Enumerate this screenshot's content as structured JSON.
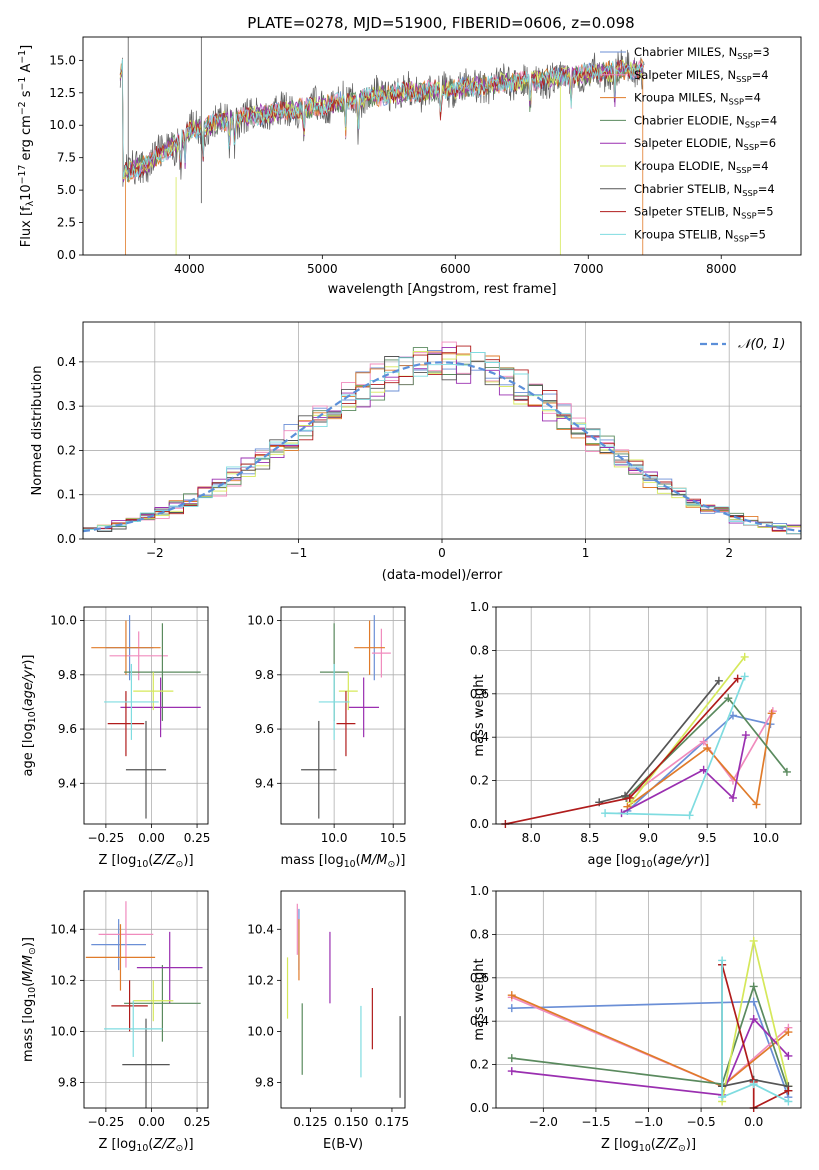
{
  "figure": {
    "title": "PLATE=0278, MJD=51900, FIBERID=0606, z=0.098"
  },
  "colors": {
    "chabrier_miles": "#6b8fd6",
    "salpeter_miles": "#f08bbd",
    "kroupa_miles": "#e07b2a",
    "chabrier_elodie": "#5a8a5e",
    "salpeter_elodie": "#9a2fb0",
    "kroupa_elodie": "#d5e85a",
    "chabrier_stelib": "#555555",
    "salpeter_stelib": "#b01c1c",
    "kroupa_stelib": "#7fdce0"
  },
  "chart_data": [
    {
      "id": "spectrum",
      "type": "line",
      "xlabel": "wavelength [Angstrom, rest frame]",
      "ylabel": "Flux [f_λ 10^-17 erg cm^-2 s^-1 A^-1]",
      "xlim": [
        3200,
        8600
      ],
      "ylim": [
        0,
        16.8
      ],
      "xticks": [
        4000,
        5000,
        6000,
        7000,
        8000
      ],
      "yticks": [
        0.0,
        2.5,
        5.0,
        7.5,
        10.0,
        12.5,
        15.0
      ],
      "grid": false,
      "legend_position": "top-right",
      "legend": [
        {
          "label": "Chabrier MILES, N_SSP=3",
          "base": "Chabrier MILES, N",
          "sub": "SSP",
          "value": "=3",
          "color_key": "chabrier_miles"
        },
        {
          "label": "Salpeter MILES, N_SSP=4",
          "base": "Salpeter MILES, N",
          "sub": "SSP",
          "value": "=4",
          "color_key": "salpeter_miles"
        },
        {
          "label": "Kroupa MILES, N_SSP=4",
          "base": "Kroupa MILES, N",
          "sub": "SSP",
          "value": "=4",
          "color_key": "kroupa_miles"
        },
        {
          "label": "Chabrier ELODIE, N_SSP=4",
          "base": "Chabrier ELODIE, N",
          "sub": "SSP",
          "value": "=4",
          "color_key": "chabrier_elodie"
        },
        {
          "label": "Salpeter ELODIE, N_SSP=6",
          "base": "Salpeter ELODIE, N",
          "sub": "SSP",
          "value": "=6",
          "color_key": "salpeter_elodie"
        },
        {
          "label": "Kroupa ELODIE, N_SSP=4",
          "base": "Kroupa ELODIE, N",
          "sub": "SSP",
          "value": "=4",
          "color_key": "kroupa_elodie"
        },
        {
          "label": "Chabrier STELIB, N_SSP=4",
          "base": "Chabrier STELIB, N",
          "sub": "SSP",
          "value": "=4",
          "color_key": "chabrier_stelib"
        },
        {
          "label": "Salpeter STELIB, N_SSP=5",
          "base": "Salpeter STELIB, N",
          "sub": "SSP",
          "value": "=5",
          "color_key": "salpeter_stelib"
        },
        {
          "label": "Kroupa STELIB, N_SSP=5",
          "base": "Kroupa STELIB, N",
          "sub": "SSP",
          "value": "=5",
          "color_key": "kroupa_stelib"
        }
      ],
      "continuum": {
        "x": [
          3500,
          3700,
          3900,
          4000,
          4300,
          4600,
          5000,
          5300,
          5600,
          6000,
          6300,
          6600,
          7000,
          7300,
          7400
        ],
        "y": [
          6.2,
          7.2,
          8.6,
          9.6,
          10.4,
          10.9,
          11.5,
          12.1,
          12.5,
          12.8,
          13.2,
          13.5,
          14.0,
          14.3,
          14.3
        ]
      }
    },
    {
      "id": "residuals",
      "type": "histogram",
      "xlabel": "(data-model)/error",
      "ylabel": "Normed distribution",
      "xlim": [
        -2.5,
        2.5
      ],
      "ylim": [
        0,
        0.49
      ],
      "xticks": [
        -2,
        -1,
        0,
        1,
        2
      ],
      "yticks": [
        0.0,
        0.1,
        0.2,
        0.3,
        0.4
      ],
      "grid": true,
      "legend_position": "top-right",
      "reference": {
        "label": "𝒩(0, 1)",
        "color": "#5b8fd9",
        "mu": 0,
        "sigma": 1
      },
      "bin_width": 0.1
    },
    {
      "id": "age_vs_Z",
      "type": "errorbar",
      "xlabel": "Z [log10(Z/Z⊙)]",
      "ylabel": "age [log10(age/yr)]",
      "xlim": [
        -0.37,
        0.31
      ],
      "ylim": [
        9.25,
        10.05
      ],
      "xticks": [
        -0.25,
        0.0,
        0.25
      ],
      "xticklabels": [
        "−0.25",
        "0.00",
        "0.25"
      ],
      "yticks": [
        9.4,
        9.6,
        9.8,
        10.0
      ],
      "grid": true,
      "points": [
        {
          "color_key": "chabrier_miles",
          "x": -0.12,
          "xerr": 0.13,
          "y": 9.9,
          "yerr": 0.12
        },
        {
          "color_key": "salpeter_miles",
          "x": -0.07,
          "xerr": 0.16,
          "y": 9.87,
          "yerr": 0.09
        },
        {
          "color_key": "kroupa_miles",
          "x": -0.14,
          "xerr": 0.19,
          "y": 9.9,
          "yerr": 0.1
        },
        {
          "color_key": "chabrier_elodie",
          "x": 0.06,
          "xerr": 0.21,
          "y": 9.81,
          "yerr": 0.18
        },
        {
          "color_key": "salpeter_elodie",
          "x": 0.05,
          "xerr": 0.22,
          "y": 9.68,
          "yerr": 0.11
        },
        {
          "color_key": "kroupa_elodie",
          "x": 0.01,
          "xerr": 0.11,
          "y": 9.74,
          "yerr": 0.07
        },
        {
          "color_key": "chabrier_stelib",
          "x": -0.03,
          "xerr": 0.11,
          "y": 9.45,
          "yerr": 0.18
        },
        {
          "color_key": "salpeter_stelib",
          "x": -0.14,
          "xerr": 0.1,
          "y": 9.62,
          "yerr": 0.12
        },
        {
          "color_key": "kroupa_stelib",
          "x": -0.11,
          "xerr": 0.15,
          "y": 9.7,
          "yerr": 0.14
        }
      ]
    },
    {
      "id": "age_vs_mass",
      "type": "errorbar",
      "xlabel": "mass [log10(M/M⊙)]",
      "ylabel": "",
      "xlim": [
        9.55,
        10.6
      ],
      "ylim": [
        9.25,
        10.05
      ],
      "xticks": [
        10.0,
        10.5
      ],
      "xticklabels": [
        "10.0",
        "10.5"
      ],
      "yticks": [
        9.4,
        9.6,
        9.8,
        10.0
      ],
      "grid": true,
      "points": [
        {
          "color_key": "chabrier_miles",
          "x": 10.34,
          "xerr": 0.0,
          "y": 9.9,
          "yerr": 0.12
        },
        {
          "color_key": "salpeter_miles",
          "x": 10.4,
          "xerr": 0.08,
          "y": 9.88,
          "yerr": 0.09
        },
        {
          "color_key": "kroupa_miles",
          "x": 10.3,
          "xerr": 0.13,
          "y": 9.9,
          "yerr": 0.1
        },
        {
          "color_key": "chabrier_elodie",
          "x": 10.0,
          "xerr": 0.12,
          "y": 9.81,
          "yerr": 0.18
        },
        {
          "color_key": "salpeter_elodie",
          "x": 10.25,
          "xerr": 0.13,
          "y": 9.68,
          "yerr": 0.11
        },
        {
          "color_key": "kroupa_elodie",
          "x": 10.12,
          "xerr": 0.08,
          "y": 9.74,
          "yerr": 0.07
        },
        {
          "color_key": "chabrier_stelib",
          "x": 9.87,
          "xerr": 0.15,
          "y": 9.45,
          "yerr": 0.18
        },
        {
          "color_key": "salpeter_stelib",
          "x": 10.1,
          "xerr": 0.08,
          "y": 9.62,
          "yerr": 0.12
        },
        {
          "color_key": "kroupa_stelib",
          "x": 10.0,
          "xerr": 0.13,
          "y": 9.7,
          "yerr": 0.14
        }
      ]
    },
    {
      "id": "weight_vs_age",
      "type": "line",
      "xlabel": "age [log10(age/yr)]",
      "ylabel": "mass weight",
      "xlim": [
        7.7,
        10.3
      ],
      "ylim": [
        0,
        1.0
      ],
      "xticks": [
        8.0,
        8.5,
        9.0,
        9.5,
        10.0
      ],
      "xticklabels": [
        "8.0",
        "8.5",
        "9.0",
        "9.5",
        "10.0"
      ],
      "yticks": [
        0.0,
        0.2,
        0.4,
        0.6,
        0.8,
        1.0
      ],
      "grid": true,
      "series": [
        {
          "color_key": "chabrier_miles",
          "x": [
            8.82,
            9.72,
            10.04
          ],
          "y": [
            0.06,
            0.5,
            0.46
          ]
        },
        {
          "color_key": "salpeter_miles",
          "x": [
            8.82,
            9.47,
            9.72,
            10.06
          ],
          "y": [
            0.12,
            0.38,
            0.2,
            0.52
          ]
        },
        {
          "color_key": "kroupa_miles",
          "x": [
            8.82,
            9.5,
            9.92,
            10.05
          ],
          "y": [
            0.08,
            0.35,
            0.09,
            0.51
          ]
        },
        {
          "color_key": "chabrier_elodie",
          "x": [
            8.81,
            9.68,
            10.18
          ],
          "y": [
            0.12,
            0.58,
            0.24
          ]
        },
        {
          "color_key": "salpeter_elodie",
          "x": [
            8.77,
            9.47,
            9.72,
            9.83
          ],
          "y": [
            0.05,
            0.25,
            0.12,
            0.41
          ]
        },
        {
          "color_key": "kroupa_elodie",
          "x": [
            8.85,
            9.82
          ],
          "y": [
            0.1,
            0.77
          ]
        },
        {
          "color_key": "chabrier_stelib",
          "x": [
            8.58,
            8.8,
            9.6
          ],
          "y": [
            0.1,
            0.13,
            0.66
          ]
        },
        {
          "color_key": "salpeter_stelib",
          "x": [
            7.78,
            8.84,
            9.76
          ],
          "y": [
            0.0,
            0.12,
            0.67
          ]
        },
        {
          "color_key": "kroupa_stelib",
          "x": [
            8.63,
            9.35,
            9.82
          ],
          "y": [
            0.05,
            0.04,
            0.68
          ]
        }
      ]
    },
    {
      "id": "mass_vs_Z",
      "type": "errorbar",
      "xlabel": "Z [log10(Z/Z⊙)]",
      "ylabel": "mass [log10(M/M⊙)]",
      "xlim": [
        -0.37,
        0.31
      ],
      "ylim": [
        9.7,
        10.55
      ],
      "xticks": [
        -0.25,
        0.0,
        0.25
      ],
      "xticklabels": [
        "−0.25",
        "0.00",
        "0.25"
      ],
      "yticks": [
        9.8,
        10.0,
        10.2,
        10.4
      ],
      "grid": true,
      "points": [
        {
          "color_key": "chabrier_miles",
          "x": -0.18,
          "xerr": 0.15,
          "y": 10.34,
          "yerr": 0.1
        },
        {
          "color_key": "salpeter_miles",
          "x": -0.14,
          "xerr": 0.15,
          "y": 10.38,
          "yerr": 0.13
        },
        {
          "color_key": "kroupa_miles",
          "x": -0.17,
          "xerr": 0.19,
          "y": 10.29,
          "yerr": 0.13
        },
        {
          "color_key": "chabrier_elodie",
          "x": 0.06,
          "xerr": 0.21,
          "y": 10.11,
          "yerr": 0.15
        },
        {
          "color_key": "salpeter_elodie",
          "x": 0.1,
          "xerr": 0.18,
          "y": 10.25,
          "yerr": 0.14
        },
        {
          "color_key": "kroupa_elodie",
          "x": 0.01,
          "xerr": 0.11,
          "y": 10.12,
          "yerr": 0.08
        },
        {
          "color_key": "chabrier_stelib",
          "x": -0.03,
          "xerr": 0.13,
          "y": 9.87,
          "yerr": 0.18
        },
        {
          "color_key": "salpeter_stelib",
          "x": -0.12,
          "xerr": 0.1,
          "y": 10.1,
          "yerr": 0.1
        },
        {
          "color_key": "kroupa_stelib",
          "x": -0.1,
          "xerr": 0.16,
          "y": 10.01,
          "yerr": 0.11
        }
      ]
    },
    {
      "id": "mass_vs_ebv",
      "type": "errorbar",
      "xlabel": "E(B-V)",
      "ylabel": "",
      "xlim": [
        0.107,
        0.183
      ],
      "ylim": [
        9.7,
        10.55
      ],
      "xticks": [
        0.125,
        0.15,
        0.175
      ],
      "xticklabels": [
        "0.125",
        "0.150",
        "0.175"
      ],
      "yticks": [
        9.8,
        10.0,
        10.2,
        10.4
      ],
      "grid": false,
      "points": [
        {
          "color_key": "chabrier_miles",
          "x": 0.118,
          "xerr": 0.0,
          "y": 10.36,
          "yerr": 0.12
        },
        {
          "color_key": "salpeter_miles",
          "x": 0.117,
          "xerr": 0.0,
          "y": 10.4,
          "yerr": 0.1
        },
        {
          "color_key": "kroupa_miles",
          "x": 0.118,
          "xerr": 0.0,
          "y": 10.32,
          "yerr": 0.12
        },
        {
          "color_key": "chabrier_elodie",
          "x": 0.12,
          "xerr": 0.0,
          "y": 9.97,
          "yerr": 0.14
        },
        {
          "color_key": "salpeter_elodie",
          "x": 0.137,
          "xerr": 0.0,
          "y": 10.25,
          "yerr": 0.14
        },
        {
          "color_key": "kroupa_elodie",
          "x": 0.111,
          "xerr": 0.0,
          "y": 10.17,
          "yerr": 0.12
        },
        {
          "color_key": "chabrier_stelib",
          "x": 0.18,
          "xerr": 0.0,
          "y": 9.9,
          "yerr": 0.16
        },
        {
          "color_key": "salpeter_stelib",
          "x": 0.163,
          "xerr": 0.0,
          "y": 10.05,
          "yerr": 0.12
        },
        {
          "color_key": "kroupa_stelib",
          "x": 0.156,
          "xerr": 0.0,
          "y": 9.96,
          "yerr": 0.14
        }
      ]
    },
    {
      "id": "weight_vs_Z",
      "type": "line",
      "xlabel": "Z [log10(Z/Z⊙)]",
      "ylabel": "mass weight",
      "xlim": [
        -2.45,
        0.45
      ],
      "ylim": [
        0,
        1.0
      ],
      "xticks": [
        -2.0,
        -1.5,
        -1.0,
        -0.5,
        0.0
      ],
      "xticklabels": [
        "−2.0",
        "−1.5",
        "−1.0",
        "−0.5",
        "0.0"
      ],
      "yticks": [
        0.0,
        0.2,
        0.4,
        0.6,
        0.8,
        1.0
      ],
      "grid": true,
      "series": [
        {
          "color_key": "chabrier_miles",
          "x": [
            -2.3,
            0.0,
            0.33
          ],
          "y": [
            0.46,
            0.49,
            0.05
          ]
        },
        {
          "color_key": "salpeter_miles",
          "x": [
            -2.3,
            -0.3,
            0.33
          ],
          "y": [
            0.51,
            0.1,
            0.37
          ]
        },
        {
          "color_key": "kroupa_miles",
          "x": [
            -2.3,
            -0.3,
            0.33
          ],
          "y": [
            0.52,
            0.1,
            0.35
          ]
        },
        {
          "color_key": "chabrier_elodie",
          "x": [
            -2.3,
            -0.3,
            0.0,
            0.33
          ],
          "y": [
            0.23,
            0.11,
            0.56,
            0.08
          ]
        },
        {
          "color_key": "salpeter_elodie",
          "x": [
            -2.3,
            -0.3,
            0.0,
            0.33
          ],
          "y": [
            0.17,
            0.06,
            0.41,
            0.24
          ]
        },
        {
          "color_key": "kroupa_elodie",
          "x": [
            -0.3,
            0.0,
            0.33
          ],
          "y": [
            0.03,
            0.77,
            0.1
          ]
        },
        {
          "color_key": "chabrier_stelib",
          "x": [
            -0.3,
            -0.3,
            0.0,
            0.33
          ],
          "y": [
            0.66,
            0.1,
            0.13,
            0.1
          ]
        },
        {
          "color_key": "salpeter_stelib",
          "x": [
            -0.3,
            0.0,
            0.0,
            0.33
          ],
          "y": [
            0.66,
            0.12,
            0.0,
            0.08
          ]
        },
        {
          "color_key": "kroupa_stelib",
          "x": [
            -0.3,
            -0.3,
            0.0,
            0.33
          ],
          "y": [
            0.68,
            0.05,
            0.11,
            0.03
          ]
        }
      ]
    }
  ]
}
